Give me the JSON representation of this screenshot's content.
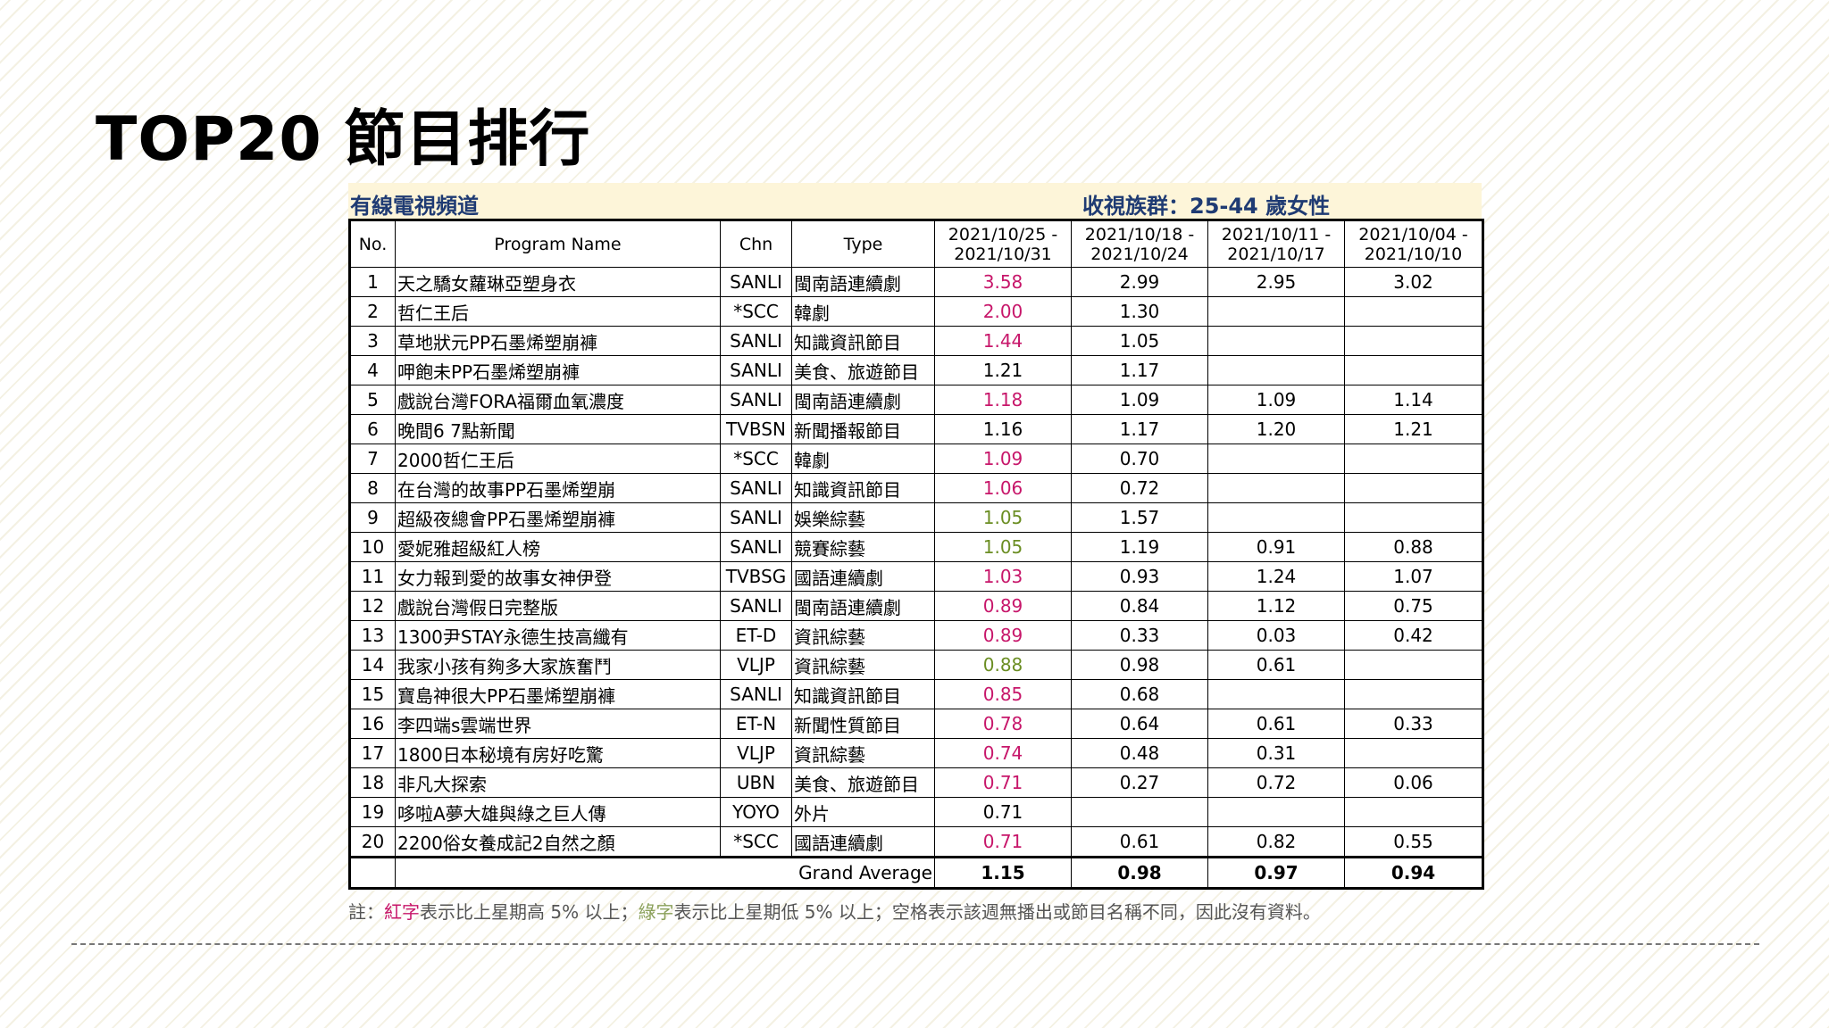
{
  "title": "TOP20 節目排行",
  "table": {
    "channel_label": "有線電視頻道",
    "demo_label": "收視族群：25-44 歲女性",
    "headers": {
      "no": "No.",
      "program": "Program Name",
      "chn": "Chn",
      "type": "Type",
      "weeks": [
        "2021/10/25 - 2021/10/31",
        "2021/10/18 - 2021/10/24",
        "2021/10/11 - 2021/10/17",
        "2021/10/04 - 2021/10/10"
      ]
    },
    "rows": [
      {
        "no": "1",
        "program": "天之驕女蘿琳亞塑身衣",
        "chn": "SANLI",
        "type": "閩南語連續劇",
        "w1": "3.58",
        "w1_color": "red",
        "w2": "2.99",
        "w3": "2.95",
        "w4": "3.02"
      },
      {
        "no": "2",
        "program": "哲仁王后",
        "chn": "*SCC",
        "type": "韓劇",
        "w1": "2.00",
        "w1_color": "red",
        "w2": "1.30",
        "w3": "",
        "w4": ""
      },
      {
        "no": "3",
        "program": "草地狀元PP石墨烯塑崩褲",
        "chn": "SANLI",
        "type": "知識資訊節目",
        "w1": "1.44",
        "w1_color": "red",
        "w2": "1.05",
        "w3": "",
        "w4": ""
      },
      {
        "no": "4",
        "program": "呷飽未PP石墨烯塑崩褲",
        "chn": "SANLI",
        "type": "美食、旅遊節目",
        "w1": "1.21",
        "w1_color": "black",
        "w2": "1.17",
        "w3": "",
        "w4": ""
      },
      {
        "no": "5",
        "program": "戲說台灣FORA福爾血氧濃度",
        "chn": "SANLI",
        "type": "閩南語連續劇",
        "w1": "1.18",
        "w1_color": "red",
        "w2": "1.09",
        "w3": "1.09",
        "w4": "1.14"
      },
      {
        "no": "6",
        "program": "晚間6 7點新聞",
        "chn": "TVBSN",
        "type": "新聞播報節目",
        "w1": "1.16",
        "w1_color": "black",
        "w2": "1.17",
        "w3": "1.20",
        "w4": "1.21"
      },
      {
        "no": "7",
        "program": "2000哲仁王后",
        "chn": "*SCC",
        "type": "韓劇",
        "w1": "1.09",
        "w1_color": "red",
        "w2": "0.70",
        "w3": "",
        "w4": ""
      },
      {
        "no": "8",
        "program": "在台灣的故事PP石墨烯塑崩",
        "chn": "SANLI",
        "type": "知識資訊節目",
        "w1": "1.06",
        "w1_color": "red",
        "w2": "0.72",
        "w3": "",
        "w4": ""
      },
      {
        "no": "9",
        "program": "超級夜總會PP石墨烯塑崩褲",
        "chn": "SANLI",
        "type": "娛樂綜藝",
        "w1": "1.05",
        "w1_color": "green",
        "w2": "1.57",
        "w3": "",
        "w4": ""
      },
      {
        "no": "10",
        "program": "愛妮雅超級紅人榜",
        "chn": "SANLI",
        "type": "競賽綜藝",
        "w1": "1.05",
        "w1_color": "green",
        "w2": "1.19",
        "w3": "0.91",
        "w4": "0.88"
      },
      {
        "no": "11",
        "program": "女力報到愛的故事女神伊登",
        "chn": "TVBSG",
        "type": "國語連續劇",
        "w1": "1.03",
        "w1_color": "red",
        "w2": "0.93",
        "w3": "1.24",
        "w4": "1.07"
      },
      {
        "no": "12",
        "program": "戲說台灣假日完整版",
        "chn": "SANLI",
        "type": "閩南語連續劇",
        "w1": "0.89",
        "w1_color": "red",
        "w2": "0.84",
        "w3": "1.12",
        "w4": "0.75"
      },
      {
        "no": "13",
        "program": "1300尹STAY永德生技高纖有",
        "chn": "ET-D",
        "type": "資訊綜藝",
        "w1": "0.89",
        "w1_color": "red",
        "w2": "0.33",
        "w3": "0.03",
        "w4": "0.42"
      },
      {
        "no": "14",
        "program": "我家小孩有夠多大家族奮鬥",
        "chn": "VLJP",
        "type": "資訊綜藝",
        "w1": "0.88",
        "w1_color": "green",
        "w2": "0.98",
        "w3": "0.61",
        "w4": ""
      },
      {
        "no": "15",
        "program": "寶島神很大PP石墨烯塑崩褲",
        "chn": "SANLI",
        "type": "知識資訊節目",
        "w1": "0.85",
        "w1_color": "red",
        "w2": "0.68",
        "w3": "",
        "w4": ""
      },
      {
        "no": "16",
        "program": "李四端s雲端世界",
        "chn": "ET-N",
        "type": "新聞性質節目",
        "w1": "0.78",
        "w1_color": "red",
        "w2": "0.64",
        "w3": "0.61",
        "w4": "0.33"
      },
      {
        "no": "17",
        "program": "1800日本秘境有房好吃驚",
        "chn": "VLJP",
        "type": "資訊綜藝",
        "w1": "0.74",
        "w1_color": "red",
        "w2": "0.48",
        "w3": "0.31",
        "w4": ""
      },
      {
        "no": "18",
        "program": "非凡大探索",
        "chn": "UBN",
        "type": "美食、旅遊節目",
        "w1": "0.71",
        "w1_color": "red",
        "w2": "0.27",
        "w3": "0.72",
        "w4": "0.06"
      },
      {
        "no": "19",
        "program": "哆啦A夢大雄與綠之巨人傳",
        "chn": "YOYO",
        "type": "外片",
        "w1": "0.71",
        "w1_color": "black",
        "w2": "",
        "w3": "",
        "w4": ""
      },
      {
        "no": "20",
        "program": "2200俗女養成記2自然之顏",
        "chn": "*SCC",
        "type": "國語連續劇",
        "w1": "0.71",
        "w1_color": "red",
        "w2": "0.61",
        "w3": "0.82",
        "w4": "0.55"
      }
    ],
    "total": {
      "label": "Grand Average",
      "w1": "1.15",
      "w2": "0.98",
      "w3": "0.97",
      "w4": "0.94"
    }
  },
  "note": {
    "prefix": "註：",
    "red_word": "紅字",
    "red_text": "表示比上星期高 5% 以上；",
    "green_word": "綠字",
    "green_text": "表示比上星期低 5% 以上；空格表示該週無播出或節目名稱不同，因此沒有資料。"
  },
  "colors": {
    "red": "#c7166a",
    "green": "#6b8e23",
    "header_band_bg": "#fdf5d9",
    "header_band_text": "#1f3b73"
  }
}
